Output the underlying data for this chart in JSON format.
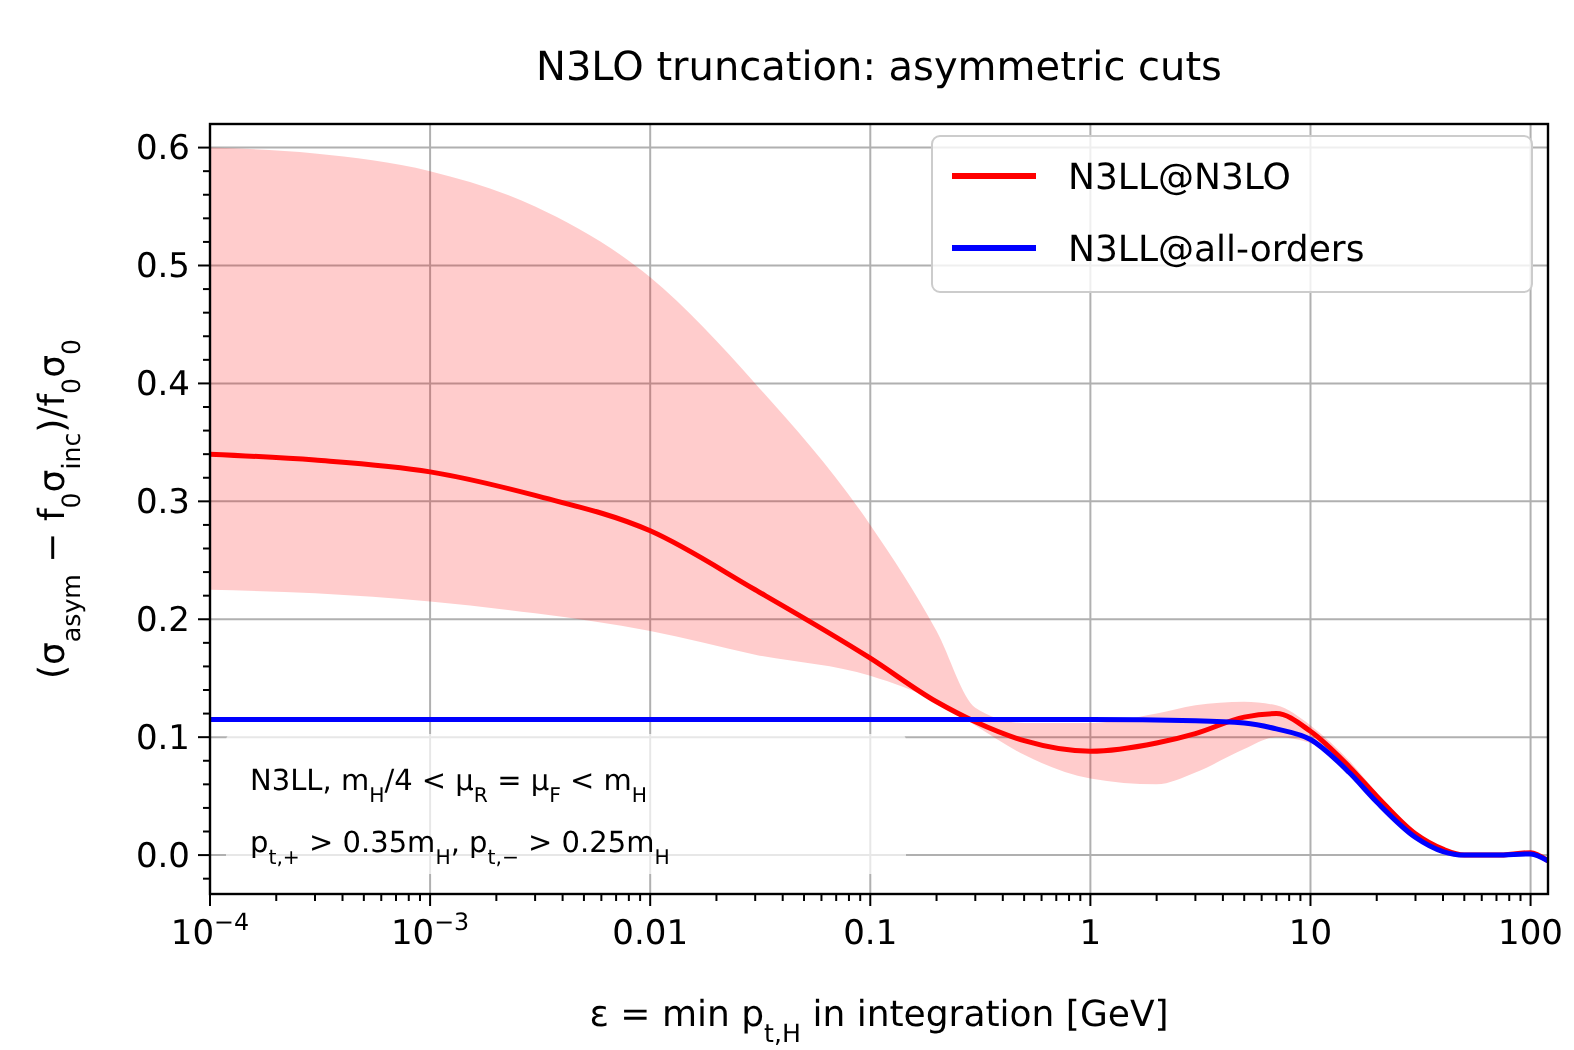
{
  "chart_data": {
    "type": "line",
    "title": "N3LO truncation: asymmetric cuts",
    "xlabel": "ε = min p$_{t,H}$ in integration [GeV]",
    "ylabel": "(σ$_{asym}$ − f$_{0}$σ$_{inc}$)/f$_{0}$σ$_{0}$",
    "log": "x",
    "xlim": [
      0.0001,
      120
    ],
    "ylim": [
      -0.033,
      0.62
    ],
    "xticks": [
      {
        "value": 0.0001,
        "label": "10$^{−4}$"
      },
      {
        "value": 0.001,
        "label": "10$^{−3}$"
      },
      0.01,
      0.1,
      1,
      10,
      100,
      {
        "value": 0.0002,
        "label": null
      },
      {
        "value": 0.0003,
        "label": null
      },
      {
        "value": 0.0004,
        "label": null
      },
      {
        "value": 0.0005,
        "label": null
      },
      {
        "value": 0.0006,
        "label": null
      },
      {
        "value": 0.0007,
        "label": null
      },
      {
        "value": 0.0008,
        "label": null
      },
      {
        "value": 0.0009,
        "label": null
      },
      {
        "value": 0.002,
        "label": null
      },
      {
        "value": 0.003,
        "label": null
      },
      {
        "value": 0.004,
        "label": null
      },
      {
        "value": 0.005,
        "label": null
      },
      {
        "value": 0.006,
        "label": null
      },
      {
        "value": 0.007,
        "label": null
      },
      {
        "value": 0.008,
        "label": null
      },
      {
        "value": 0.009,
        "label": null
      },
      {
        "value": 0.02,
        "label": null
      },
      {
        "value": 0.03,
        "label": null
      },
      {
        "value": 0.04,
        "label": null
      },
      {
        "value": 0.05,
        "label": null
      },
      {
        "value": 0.06,
        "label": null
      },
      {
        "value": 0.07,
        "label": null
      },
      {
        "value": 0.08,
        "label": null
      },
      {
        "value": 0.09,
        "label": null
      },
      {
        "value": 0.2,
        "label": null
      },
      {
        "value": 0.3,
        "label": null
      },
      {
        "value": 0.4,
        "label": null
      },
      {
        "value": 0.5,
        "label": null
      },
      {
        "value": 0.6,
        "label": null
      },
      {
        "value": 0.7,
        "label": null
      },
      {
        "value": 0.8,
        "label": null
      },
      {
        "value": 0.9,
        "label": null
      },
      {
        "value": 2,
        "label": null
      },
      {
        "value": 3,
        "label": null
      },
      {
        "value": 4,
        "label": null
      },
      {
        "value": 5,
        "label": null
      },
      {
        "value": 6,
        "label": null
      },
      {
        "value": 7,
        "label": null
      },
      {
        "value": 8,
        "label": null
      },
      {
        "value": 9,
        "label": null
      },
      {
        "value": 20,
        "label": null
      },
      {
        "value": 30,
        "label": null
      },
      {
        "value": 40,
        "label": null
      },
      {
        "value": 50,
        "label": null
      },
      {
        "value": 60,
        "label": null
      },
      {
        "value": 70,
        "label": null
      },
      {
        "value": 80,
        "label": null
      },
      {
        "value": 90,
        "label": null
      }
    ],
    "yticks": [
      {
        "value": 0,
        "label": "0.0"
      },
      0.1,
      0.2,
      0.3,
      0.4,
      0.5,
      0.6,
      {
        "value": -0.02,
        "label": null
      },
      {
        "value": 0.02,
        "label": null
      },
      {
        "value": 0.04,
        "label": null
      },
      {
        "value": 0.06,
        "label": null
      },
      {
        "value": 0.08,
        "label": null
      },
      {
        "value": 0.12,
        "label": null
      },
      {
        "value": 0.14,
        "label": null
      },
      {
        "value": 0.16,
        "label": null
      },
      {
        "value": 0.18,
        "label": null
      },
      {
        "value": 0.22,
        "label": null
      },
      {
        "value": 0.24,
        "label": null
      },
      {
        "value": 0.26,
        "label": null
      },
      {
        "value": 0.28,
        "label": null
      },
      {
        "value": 0.32,
        "label": null
      },
      {
        "value": 0.34,
        "label": null
      },
      {
        "value": 0.36,
        "label": null
      },
      {
        "value": 0.38,
        "label": null
      },
      {
        "value": 0.42,
        "label": null
      },
      {
        "value": 0.44,
        "label": null
      },
      {
        "value": 0.46,
        "label": null
      },
      {
        "value": 0.48,
        "label": null
      },
      {
        "value": 0.52,
        "label": null
      },
      {
        "value": 0.54,
        "label": null
      },
      {
        "value": 0.56,
        "label": null
      },
      {
        "value": 0.58,
        "label": null
      }
    ],
    "grid": true,
    "legend": "top right",
    "series": [
      {
        "name": "N3LL@N3LO",
        "color": "#ff0000",
        "x": [
          0.0001,
          0.0003,
          0.001,
          0.003,
          0.01,
          0.03,
          0.1,
          0.2,
          0.3,
          0.5,
          1,
          2,
          3,
          5,
          7,
          10,
          15,
          20,
          30,
          40,
          50,
          70,
          100,
          120
        ],
        "values": [
          0.34,
          0.335,
          0.325,
          0.305,
          0.275,
          0.225,
          0.167,
          0.13,
          0.113,
          0.097,
          0.088,
          0.095,
          0.103,
          0.117,
          0.12,
          0.105,
          0.075,
          0.05,
          0.018,
          0.005,
          0.0,
          0.0,
          0.002,
          -0.005
        ],
        "lower": [
          0.225,
          0.222,
          0.215,
          0.205,
          0.19,
          0.17,
          0.152,
          0.13,
          0.11,
          0.085,
          0.065,
          0.06,
          0.07,
          0.09,
          0.1,
          0.095,
          0.07,
          0.045,
          0.015,
          0.003,
          0.0,
          0.0,
          0.001,
          -0.006
        ],
        "upper": [
          0.6,
          0.595,
          0.58,
          0.55,
          0.49,
          0.4,
          0.28,
          0.19,
          0.125,
          0.112,
          0.112,
          0.12,
          0.127,
          0.13,
          0.127,
          0.11,
          0.08,
          0.053,
          0.02,
          0.006,
          0.001,
          0.001,
          0.003,
          -0.004
        ]
      },
      {
        "name": "N3LL@all-orders",
        "color": "#0000ff",
        "x": [
          0.0001,
          0.001,
          0.01,
          0.1,
          1,
          3,
          5,
          7,
          10,
          15,
          20,
          30,
          40,
          50,
          70,
          100,
          120
        ],
        "values": [
          0.115,
          0.115,
          0.115,
          0.115,
          0.115,
          0.114,
          0.112,
          0.107,
          0.098,
          0.07,
          0.045,
          0.015,
          0.003,
          0.0,
          0.0,
          0.001,
          -0.005
        ]
      }
    ],
    "annotations": [
      "N3LL, m$_{H}$/4 < μ$_{R}$ = μ$_{F}$ < m$_{H}$",
      "p$_{t,+}$ > 0.35m$_{H}$, p$_{t,−}$ > 0.25m$_{H}$"
    ]
  }
}
